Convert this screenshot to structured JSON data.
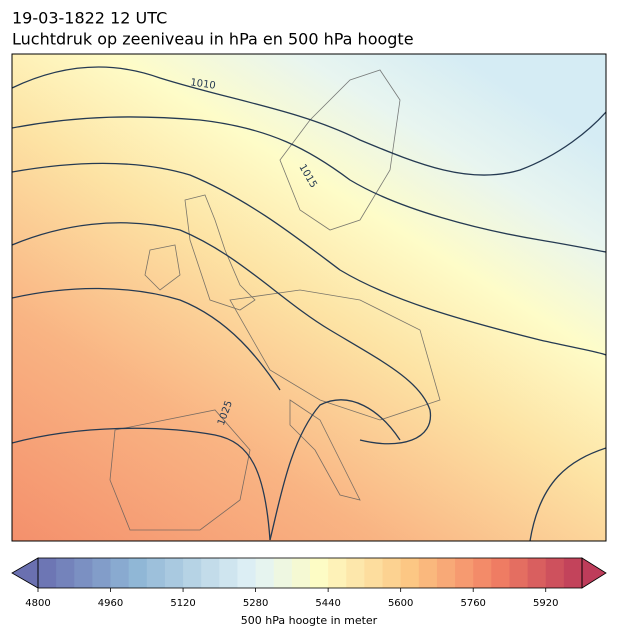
{
  "header": {
    "title_line1": "19-03-1822 12 UTC",
    "title_line2": "Luchtdruk op zeeniveau in hPa en 500 hPa hoogte"
  },
  "map": {
    "contour_labels": [
      "1010",
      "1015",
      "1025"
    ]
  },
  "colorbar": {
    "label": "500 hPa hoogte in meter",
    "lim": [
      4800,
      6000
    ],
    "ticks": [
      4800,
      4960,
      5120,
      5280,
      5440,
      5600,
      5760,
      5920
    ]
  }
}
